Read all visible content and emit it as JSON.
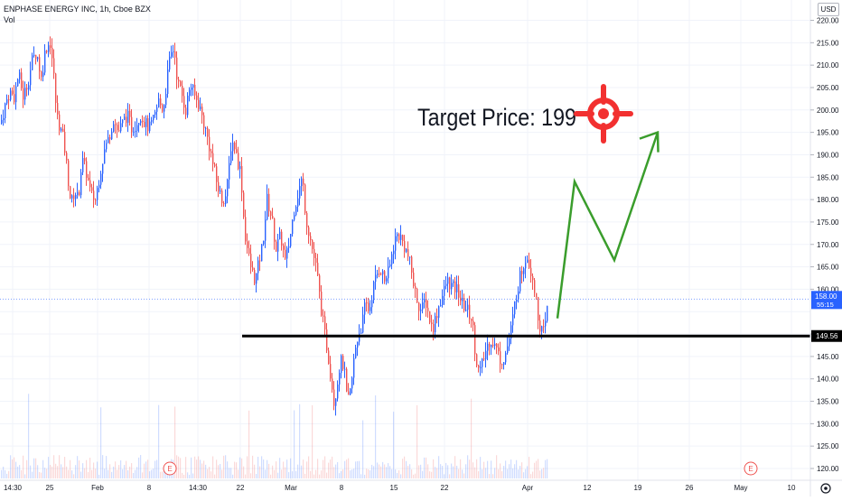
{
  "header": {
    "title": "ENPHASE ENERGY INC, 1h, Cboe BZX",
    "vol_label": "Vol",
    "currency": "USD"
  },
  "annotation": {
    "text": "Target Price: 199"
  },
  "colors": {
    "up": "#2962ff",
    "down": "#ef5350",
    "level_line": "#000000",
    "projection": "#3a9d2c",
    "target_icon": "#f23030",
    "grid": "#f0f3fa"
  },
  "chart_data": {
    "type": "candlestick",
    "symbol": "ENPHASE ENERGY INC",
    "interval": "1h",
    "exchange": "Cboe BZX",
    "y_axis": {
      "ticks": [
        120,
        125,
        130,
        135,
        140,
        145,
        150,
        155,
        160,
        165,
        170,
        175,
        180,
        185,
        190,
        195,
        200,
        205,
        210,
        215,
        220
      ],
      "tick_labels": [
        "120.00",
        "125.00",
        "130.00",
        "135.00",
        "140.00",
        "145.00",
        "150.00",
        "155.00",
        "160.00",
        "165.00",
        "170.00",
        "175.00",
        "180.00",
        "185.00",
        "190.00",
        "195.00",
        "200.00",
        "205.00",
        "210.00",
        "215.00",
        "220.00"
      ],
      "range": [
        119,
        223
      ]
    },
    "x_axis": {
      "tick_labels": [
        "14:30",
        "25",
        "Feb",
        "8",
        "14:30",
        "22",
        "Mar",
        "8",
        "15",
        "22",
        "Apr",
        "12",
        "19",
        "26",
        "May",
        "10"
      ]
    },
    "price_labels": {
      "last_price": "158.00",
      "countdown": "55:15",
      "level": "149.56"
    },
    "level_line": 149.56,
    "projection_path": [
      153.5,
      184,
      166.5,
      195
    ],
    "target_price": 199,
    "price_path": [
      [
        0,
        197
      ],
      [
        5,
        201
      ],
      [
        10,
        204
      ],
      [
        15,
        203
      ],
      [
        20,
        208
      ],
      [
        25,
        203
      ],
      [
        30,
        206
      ],
      [
        35,
        211
      ],
      [
        40,
        213
      ],
      [
        45,
        207
      ],
      [
        50,
        214
      ],
      [
        55,
        215
      ],
      [
        58,
        210
      ],
      [
        62,
        199
      ],
      [
        66,
        196
      ],
      [
        70,
        193
      ],
      [
        74,
        186
      ],
      [
        78,
        179
      ],
      [
        82,
        182
      ],
      [
        86,
        180
      ],
      [
        90,
        189
      ],
      [
        95,
        186
      ],
      [
        100,
        181
      ],
      [
        105,
        180
      ],
      [
        110,
        186
      ],
      [
        115,
        191
      ],
      [
        120,
        194
      ],
      [
        125,
        198
      ],
      [
        130,
        195
      ],
      [
        135,
        197
      ],
      [
        140,
        199
      ],
      [
        145,
        196
      ],
      [
        150,
        197
      ],
      [
        155,
        199
      ],
      [
        160,
        197
      ],
      [
        165,
        196
      ],
      [
        170,
        198
      ],
      [
        175,
        202
      ],
      [
        180,
        200
      ],
      [
        185,
        208
      ],
      [
        188,
        212
      ],
      [
        192,
        214
      ],
      [
        196,
        206
      ],
      [
        200,
        204
      ],
      [
        205,
        200
      ],
      [
        210,
        206
      ],
      [
        215,
        203
      ],
      [
        220,
        201
      ],
      [
        225,
        197
      ],
      [
        230,
        193
      ],
      [
        235,
        188
      ],
      [
        240,
        183
      ],
      [
        245,
        180
      ],
      [
        250,
        181
      ],
      [
        255,
        192
      ],
      [
        258,
        193
      ],
      [
        262,
        189
      ],
      [
        266,
        186
      ],
      [
        270,
        173
      ],
      [
        274,
        168
      ],
      [
        278,
        164
      ],
      [
        282,
        162
      ],
      [
        286,
        166
      ],
      [
        290,
        170
      ],
      [
        295,
        180
      ],
      [
        300,
        176
      ],
      [
        305,
        169
      ],
      [
        310,
        172
      ],
      [
        315,
        166
      ],
      [
        320,
        171
      ],
      [
        325,
        178
      ],
      [
        330,
        182
      ],
      [
        334,
        185
      ],
      [
        338,
        176
      ],
      [
        342,
        172
      ],
      [
        346,
        168
      ],
      [
        350,
        164
      ],
      [
        354,
        157
      ],
      [
        358,
        151
      ],
      [
        362,
        146
      ],
      [
        366,
        140
      ],
      [
        369,
        135
      ],
      [
        372,
        138
      ],
      [
        376,
        144
      ],
      [
        380,
        143
      ],
      [
        384,
        134
      ],
      [
        388,
        138
      ],
      [
        392,
        146
      ],
      [
        396,
        150
      ],
      [
        400,
        152
      ],
      [
        404,
        157
      ],
      [
        408,
        155
      ],
      [
        412,
        160
      ],
      [
        416,
        163
      ],
      [
        420,
        165
      ],
      [
        425,
        162
      ],
      [
        430,
        164
      ],
      [
        434,
        169
      ],
      [
        438,
        172
      ],
      [
        442,
        172
      ],
      [
        446,
        170
      ],
      [
        450,
        168
      ],
      [
        454,
        165
      ],
      [
        458,
        160
      ],
      [
        462,
        157
      ],
      [
        466,
        155
      ],
      [
        470,
        158
      ],
      [
        474,
        154
      ],
      [
        478,
        151
      ],
      [
        482,
        154
      ],
      [
        486,
        157
      ],
      [
        490,
        159
      ],
      [
        494,
        162
      ],
      [
        498,
        161
      ],
      [
        502,
        160
      ],
      [
        506,
        160
      ],
      [
        510,
        157
      ],
      [
        514,
        156
      ],
      [
        518,
        155
      ],
      [
        522,
        153
      ],
      [
        526,
        145
      ],
      [
        530,
        141
      ],
      [
        534,
        144
      ],
      [
        538,
        147
      ],
      [
        542,
        149
      ],
      [
        546,
        148
      ],
      [
        550,
        146
      ],
      [
        554,
        144
      ],
      [
        558,
        145
      ],
      [
        562,
        148
      ],
      [
        566,
        152
      ],
      [
        570,
        158
      ],
      [
        574,
        162
      ],
      [
        578,
        165
      ],
      [
        582,
        168
      ],
      [
        586,
        165
      ],
      [
        590,
        162
      ],
      [
        594,
        155
      ],
      [
        598,
        151
      ],
      [
        602,
        150
      ],
      [
        605,
        156
      ],
      [
        607,
        158
      ]
    ]
  }
}
